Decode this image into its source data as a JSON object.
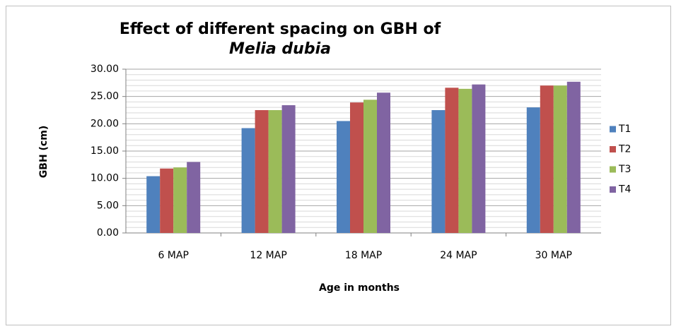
{
  "chart_data": {
    "type": "bar",
    "title": [
      "Effect of different spacing on GBH of",
      "Melia dubia"
    ],
    "x_label": "Age in months",
    "y_label": "GBH (cm)",
    "categories": [
      "6 MAP",
      "12 MAP",
      "18 MAP",
      "24 MAP",
      "30 MAP"
    ],
    "series": [
      {
        "name": "T1",
        "color": "#4f81bd",
        "values": [
          10.4,
          19.2,
          20.5,
          22.5,
          23.0
        ]
      },
      {
        "name": "T2",
        "color": "#c0504d",
        "values": [
          11.8,
          22.5,
          23.9,
          26.6,
          27.0
        ]
      },
      {
        "name": "T3",
        "color": "#9bbb59",
        "values": [
          12.0,
          22.5,
          24.4,
          26.4,
          27.0
        ]
      },
      {
        "name": "T4",
        "color": "#8064a2",
        "values": [
          13.0,
          23.4,
          25.7,
          27.2,
          27.7
        ]
      }
    ],
    "ylim": [
      0,
      30
    ],
    "yticks": [
      {
        "value": 0,
        "label": "0.00"
      },
      {
        "value": 5,
        "label": "5.00"
      },
      {
        "value": 10,
        "label": "10.00"
      },
      {
        "value": 15,
        "label": "15.00"
      },
      {
        "value": 20,
        "label": "20.00"
      },
      {
        "value": 25,
        "label": "25.00"
      },
      {
        "value": 30,
        "label": "30.00"
      }
    ],
    "minor_yticks": [
      1,
      2,
      3,
      4,
      6,
      7,
      8,
      9,
      11,
      12,
      13,
      14,
      16,
      17,
      18,
      19,
      21,
      22,
      23,
      24,
      26,
      27,
      28,
      29
    ],
    "grid": true,
    "legend": "right"
  }
}
